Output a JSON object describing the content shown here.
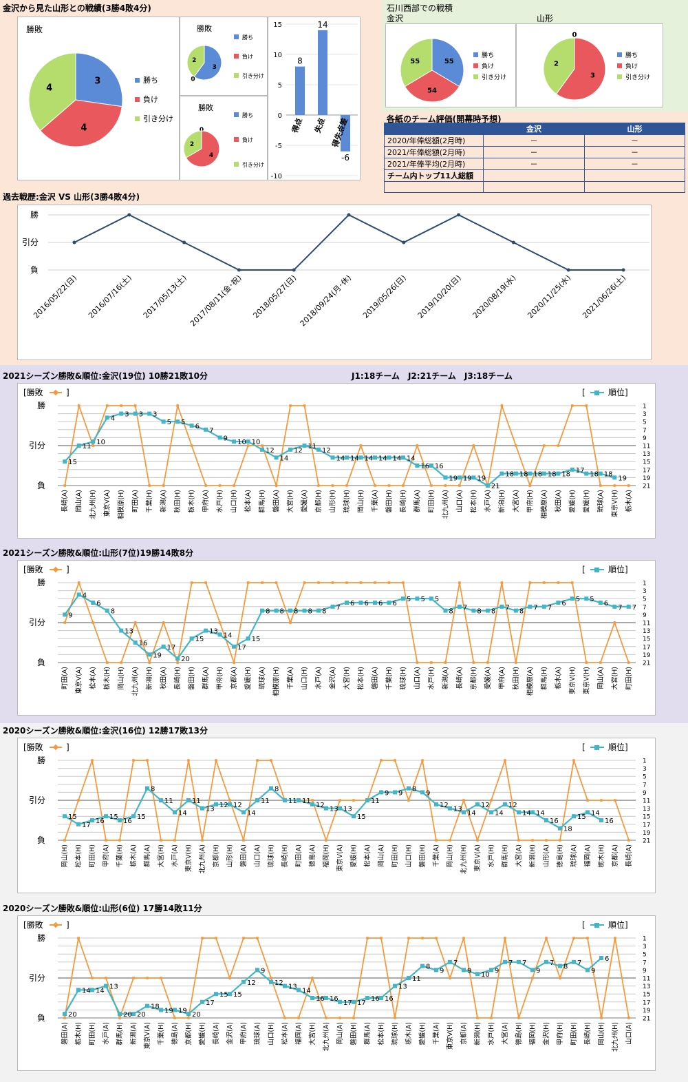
{
  "colors": {
    "win": "#5b8bd6",
    "loss": "#e8585c",
    "draw": "#b5dd6e",
    "result_line": "#f39a3c",
    "rank_line": "#43b5c6",
    "history_line": "#2e4a6f",
    "band1": "#fbe6d8",
    "band2": "#e2dcef",
    "band3": "#eeeeee",
    "band4": "#f2f2f2"
  },
  "summary": {
    "title": "金沢から見た山形との戦績(3勝4敗4分)",
    "pie_main": {
      "title": "勝敗",
      "legend": [
        "勝ち",
        "負け",
        "引き分け"
      ],
      "values": [
        3,
        4,
        4
      ]
    },
    "pie_home": {
      "title": "勝敗",
      "legend": [
        "勝ち",
        "負け",
        "引き分け"
      ],
      "values": [
        3,
        0,
        2
      ]
    },
    "pie_away": {
      "title": "勝敗",
      "legend": [
        "勝ち",
        "負け",
        "引き分け"
      ],
      "values": [
        0,
        4,
        2
      ]
    },
    "score_bar": {
      "categories": [
        "得点",
        "失点",
        "得失点差"
      ],
      "values": [
        8,
        14,
        -6
      ],
      "yticks": [
        "15",
        "10",
        "5",
        "0",
        "-5",
        "-10"
      ],
      "ylim": [
        -10,
        15
      ]
    }
  },
  "ishikawa": {
    "title": "石川西部での戦積",
    "kanazawa_label": "金沢",
    "yamagata_label": "山形",
    "pie_kanazawa": {
      "legend": [
        "勝ち",
        "負け",
        "引き分け"
      ],
      "values": [
        55,
        54,
        55
      ]
    },
    "pie_yamagata": {
      "legend": [
        "勝ち",
        "負け",
        "引き分け"
      ],
      "values": [
        0,
        3,
        2
      ]
    }
  },
  "evaluation": {
    "title": "各紙のチーム評価(開幕時予想)",
    "headers": [
      "",
      "金沢",
      "山形"
    ],
    "rows": [
      [
        "2020/年俸総額(2月時)",
        "－",
        "－"
      ],
      [
        "2021/年俸総額(2月時)",
        "－",
        "－"
      ],
      [
        "2021/年俸平均(2月時)",
        "－",
        "－"
      ],
      [
        "チーム内トップ11人総額",
        "",
        ""
      ],
      [
        "",
        "",
        ""
      ]
    ]
  },
  "history": {
    "title": "過去戦歴:金沢 VS 山形(3勝4敗4分)",
    "ylabels": [
      "勝",
      "引分",
      "負"
    ],
    "dates": [
      "2016/05/22(日)",
      "2016/07/16(土)",
      "2017/05/13(土)",
      "2017/08/11(金･祝)",
      "2018/05/27(日)",
      "2018/09/24(月･休)",
      "2019/05/26(日)",
      "2019/10/20(日)",
      "2020/08/19(水)",
      "2020/11/25(水)",
      "2021/06/26(土)"
    ],
    "results": [
      1,
      2,
      1,
      0,
      0,
      2,
      1,
      2,
      1,
      0,
      0
    ]
  },
  "season_charts": [
    {
      "title": "2021シーズン勝敗&順位:金沢(19位) 10勝21敗10分",
      "note": "J1:18チーム　J2:21チーム　J3:18チーム",
      "legend_result": "[勝敗",
      "legend_rank": "順位]",
      "ylabels": [
        "勝",
        "引分",
        "負"
      ],
      "rank_ticks": [
        "1",
        "3",
        "5",
        "7",
        "9",
        "11",
        "13",
        "15",
        "17",
        "19",
        "21"
      ],
      "opponents": [
        "長崎(A)",
        "岡山(A)",
        "北九州(H)",
        "東京V(A)",
        "相模原(H)",
        "町田(A)",
        "千葉(H)",
        "新潟(A)",
        "秋田(H)",
        "栃木(H)",
        "甲府(A)",
        "水戸(H)",
        "山口(H)",
        "松本(A)",
        "群馬(H)",
        "磐田(A)",
        "大宮(H)",
        "愛媛(A)",
        "京都(H)",
        "山形(H)",
        "琉球(H)",
        "岡山(H)",
        "千葉(A)",
        "磐田(H)",
        "長崎(H)",
        "群馬(A)",
        "町田(H)",
        "北九州(A)",
        "山口(A)",
        "松本(H)",
        "水戸(A)",
        "新潟(H)",
        "大宮(A)",
        "甲府(H)",
        "相模原(A)",
        "秋田(A)",
        "愛媛(H)",
        "愛媛(H)",
        "琉球(A)",
        "東京V(H)",
        "栃木(A)"
      ],
      "results": [
        0,
        2,
        1,
        2,
        2,
        2,
        0,
        0,
        2,
        1,
        0,
        0,
        0,
        1,
        1,
        0,
        2,
        2,
        0,
        0,
        0,
        1,
        0,
        0,
        0,
        1,
        0,
        0,
        0,
        1,
        0,
        2,
        1,
        0,
        1,
        1,
        2,
        2,
        0,
        0,
        0
      ],
      "ranks": [
        15,
        11,
        10,
        4,
        3,
        3,
        3,
        5,
        5,
        6,
        7,
        9,
        10,
        10,
        12,
        14,
        12,
        11,
        12,
        14,
        14,
        14,
        14,
        14,
        14,
        16,
        16,
        19,
        19,
        19,
        21,
        18,
        18,
        18,
        18,
        18,
        17,
        18,
        18,
        19,
        null
      ],
      "rank_labels": [
        "15",
        "11",
        "10",
        "4",
        "3",
        "3",
        "3",
        "5",
        "5",
        "6",
        "7",
        "9",
        "10",
        "10",
        "12",
        "14",
        "12",
        "11",
        "12",
        "14",
        "14",
        "14",
        "14",
        "14",
        "14",
        "16",
        "16",
        "19",
        "19",
        "19",
        "21",
        "18",
        "18",
        "18",
        "18",
        "18",
        "17",
        "18",
        "18",
        "19"
      ]
    },
    {
      "title": "2021シーズン勝敗&順位:山形(7位)19勝14敗8分",
      "note": "",
      "legend_result": "[勝敗",
      "legend_rank": "順位]",
      "ylabels": [
        "勝",
        "引分",
        "負"
      ],
      "rank_ticks": [
        "1",
        "3",
        "5",
        "7",
        "9",
        "11",
        "13",
        "15",
        "17",
        "19",
        "21"
      ],
      "opponents": [
        "町田(A)",
        "東京V(A)",
        "松本(A)",
        "栃木(H)",
        "岡山(H)",
        "北九州(A)",
        "新潟(H)",
        "秋田(A)",
        "長崎(H)",
        "磐田(H)",
        "群馬(A)",
        "甲府(H)",
        "京都(A)",
        "愛媛(H)",
        "琉球(A)",
        "相模原(H)",
        "千葉(A)",
        "山口(H)",
        "水戸(A)",
        "金沢(A)",
        "大宮(H)",
        "松本(H)",
        "磐田(A)",
        "千葉(H)",
        "琉球(H)",
        "山口(A)",
        "水戸(H)",
        "新潟(A)",
        "長崎(A)",
        "京都(H)",
        "愛媛(A)",
        "甲府(A)",
        "秋田(H)",
        "相模原(A)",
        "群馬(H)",
        "栃木(A)",
        "東京V(H)",
        "東京V(H)",
        "岡山(A)",
        "大宮(H)",
        "町田(H)"
      ],
      "results": [
        1,
        2,
        1,
        0,
        0,
        1,
        0,
        1,
        0,
        2,
        2,
        1,
        0,
        2,
        2,
        2,
        1,
        2,
        2,
        2,
        2,
        2,
        2,
        2,
        2,
        0,
        0,
        0,
        2,
        0,
        0,
        2,
        0,
        2,
        2,
        2,
        2,
        0,
        0,
        1,
        0
      ],
      "ranks": [
        9,
        4,
        6,
        8,
        13,
        16,
        19,
        17,
        20,
        15,
        13,
        14,
        17,
        15,
        8,
        8,
        8,
        8,
        8,
        7,
        6,
        6,
        6,
        6,
        5,
        5,
        5,
        8,
        7,
        8,
        8,
        7,
        8,
        7,
        7,
        6,
        5,
        5,
        6,
        7,
        7
      ],
      "rank_labels": [
        "9",
        "4",
        "6",
        "8",
        "13",
        "16",
        "19",
        "17",
        "20",
        "15",
        "13",
        "14",
        "17",
        "15",
        "8",
        "8",
        "8",
        "8",
        "8",
        "7",
        "6",
        "6",
        "6",
        "6",
        "5",
        "5",
        "5",
        "8",
        "7",
        "8",
        "8",
        "7",
        "8",
        "7",
        "7",
        "6",
        "5",
        "5",
        "6",
        "7",
        "7"
      ]
    },
    {
      "title": "2020シーズン勝敗&順位:金沢(16位) 12勝17敗13分",
      "note": "",
      "legend_result": "[勝敗",
      "legend_rank": "順位]",
      "ylabels": [
        "勝",
        "引分",
        "負"
      ],
      "rank_ticks": [
        "1",
        "3",
        "5",
        "7",
        "9",
        "11",
        "13",
        "15",
        "17",
        "19",
        "21"
      ],
      "opponents": [
        "岡山(H)",
        "松本(H)",
        "町田(H)",
        "甲府(A)",
        "千葉(H)",
        "栃木(A)",
        "群馬(A)",
        "大宮(H)",
        "水戸(A)",
        "東京V(H)",
        "北九州(A)",
        "京都(H)",
        "山形(H)",
        "磐田(A)",
        "山口(A)",
        "琉球(H)",
        "長崎(H)",
        "町田(A)",
        "徳島(A)",
        "福岡(H)",
        "東京V(A)",
        "愛媛(H)",
        "松本(A)",
        "岡山(A)",
        "町田(H)",
        "山口(H)",
        "磐田(H)",
        "千葉(A)",
        "岡山(H)",
        "北九州(H)",
        "東京V(A)",
        "水戸(H)",
        "群馬(H)",
        "大宮(A)",
        "新潟(H)",
        "山形(A)",
        "徳島(H)",
        "琉球(A)",
        "福岡(A)",
        "栃木(H)",
        "京都(A)",
        "長崎(A)"
      ],
      "results": [
        0,
        1,
        2,
        0,
        0,
        2,
        2,
        0,
        0,
        2,
        0,
        2,
        1,
        0,
        2,
        2,
        1,
        1,
        1,
        0,
        1,
        1,
        1,
        2,
        2,
        1,
        2,
        0,
        0,
        1,
        0,
        1,
        2,
        0,
        0,
        0,
        0,
        2,
        1,
        1,
        1,
        0
      ],
      "ranks": [
        15,
        17,
        16,
        15,
        16,
        15,
        8,
        11,
        14,
        11,
        13,
        12,
        12,
        14,
        11,
        8,
        11,
        11,
        12,
        13,
        13,
        15,
        11,
        9,
        9,
        8,
        9,
        12,
        13,
        14,
        12,
        14,
        12,
        14,
        14,
        16,
        18,
        15,
        14,
        16,
        null,
        null
      ],
      "rank_labels": [
        "15",
        "17",
        "16",
        "15",
        "16",
        "15",
        "8",
        "11",
        "14",
        "11",
        "13",
        "12",
        "12",
        "14",
        "11",
        "8",
        "11",
        "11",
        "12",
        "13",
        "13",
        "15",
        "11",
        "9",
        "9",
        "8",
        "9",
        "12",
        "13",
        "14",
        "12",
        "14",
        "12",
        "14",
        "14",
        "16",
        "18",
        "15",
        "14",
        "16"
      ]
    },
    {
      "title": "2020シーズン勝敗&順位:山形(6位) 17勝14敗11分",
      "note": "",
      "legend_result": "[勝敗",
      "legend_rank": "順位]",
      "ylabels": [
        "勝",
        "引分",
        "負"
      ],
      "rank_ticks": [
        "1",
        "3",
        "5",
        "7",
        "9",
        "11",
        "13",
        "15",
        "17",
        "19",
        "21"
      ],
      "opponents": [
        "磐田(A)",
        "栃木(H)",
        "町田(H)",
        "水戸(A)",
        "群馬(H)",
        "新潟(A)",
        "東京V(A)",
        "千葉(H)",
        "徳島(A)",
        "京都(H)",
        "愛媛(H)",
        "長崎(A)",
        "金沢(A)",
        "甲府(A)",
        "琉球(A)",
        "山口(H)",
        "松本(A)",
        "福岡(A)",
        "大宮(H)",
        "北九州(A)",
        "岡山(A)",
        "磐田(H)",
        "群馬(A)",
        "松本(H)",
        "琉球(H)",
        "栃木(A)",
        "愛媛(H)",
        "千葉(A)",
        "東京V(H)",
        "京都(A)",
        "新潟(H)",
        "水戸(H)",
        "大宮(A)",
        "徳島(H)",
        "福岡(H)",
        "金沢(H)",
        "甲府(H)",
        "町田(H)",
        "長崎(H)",
        "岡山(H)",
        "北九州(H)",
        "山口(A)"
      ],
      "results": [
        0,
        2,
        1,
        1,
        0,
        1,
        1,
        1,
        0,
        0,
        2,
        2,
        1,
        2,
        2,
        1,
        0,
        0,
        1,
        0,
        0,
        0,
        2,
        2,
        0,
        2,
        2,
        2,
        1,
        2,
        0,
        0,
        2,
        0,
        1,
        2,
        1,
        2,
        2,
        0,
        2,
        0
      ],
      "ranks": [
        20,
        14,
        14,
        13,
        20,
        20,
        18,
        19,
        19,
        20,
        17,
        15,
        15,
        12,
        9,
        12,
        13,
        14,
        16,
        16,
        17,
        17,
        16,
        16,
        13,
        11,
        8,
        9,
        7,
        9,
        10,
        9,
        7,
        7,
        9,
        7,
        8,
        7,
        9,
        6,
        null,
        null
      ],
      "rank_labels": [
        "20",
        "14",
        "14",
        "13",
        "20",
        "20",
        "18",
        "19",
        "19",
        "20",
        "17",
        "15",
        "15",
        "12",
        "9",
        "12",
        "13",
        "14",
        "16",
        "16",
        "17",
        "17",
        "16",
        "16",
        "13",
        "11",
        "8",
        "9",
        "7",
        "9",
        "10",
        "9",
        "7",
        "7",
        "9",
        "7",
        "8",
        "7",
        "9",
        "6"
      ]
    }
  ]
}
